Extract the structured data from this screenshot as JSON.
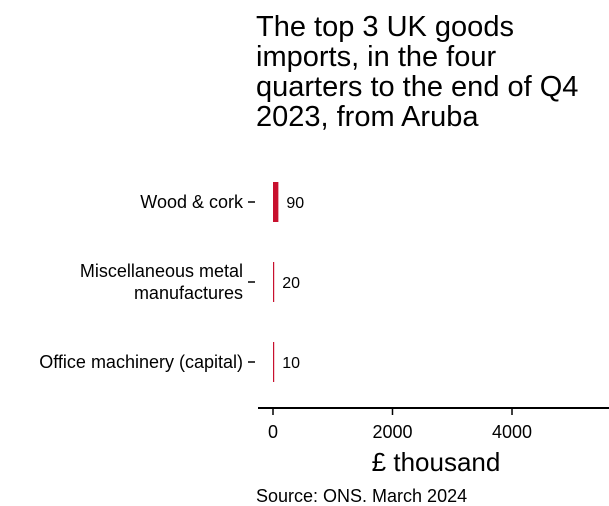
{
  "chart_data": {
    "type": "bar",
    "orientation": "horizontal",
    "title": "The top 3 UK goods imports, in the four quarters to the end of Q4 2023, from Aruba",
    "categories": [
      "Wood & cork",
      "Miscellaneous metal manufactures",
      "Office machinery (capital)"
    ],
    "category_lines": [
      [
        "Wood & cork"
      ],
      [
        "Miscellaneous metal",
        "manufactures"
      ],
      [
        "Office machinery (capital)"
      ]
    ],
    "values": [
      90,
      20,
      10
    ],
    "value_labels": [
      "90",
      "20",
      "10"
    ],
    "xlabel": "£ thousand",
    "ylabel": "",
    "xlim": [
      0,
      5500
    ],
    "xticks": [
      0,
      2000,
      4000
    ],
    "xtick_labels": [
      "0",
      "2000",
      "4000"
    ],
    "grid": false,
    "legend": "none",
    "bar_color": "#c8102e",
    "source": "Source: ONS. March 2024"
  }
}
